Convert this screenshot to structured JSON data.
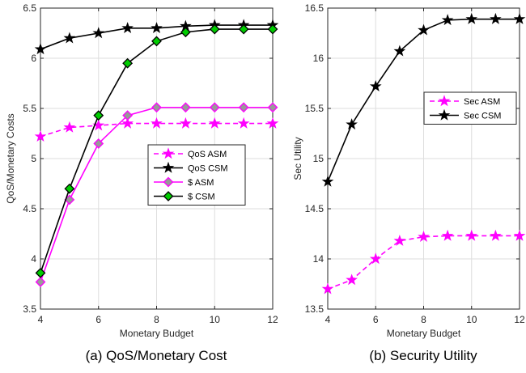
{
  "chart_data": [
    {
      "type": "line",
      "caption": "(a) QoS/Monetary Cost",
      "xlabel": "Monetary Budget",
      "ylabel": "QoS/Monetary Costs",
      "xlim": [
        4,
        12
      ],
      "ylim": [
        3.5,
        6.5
      ],
      "xticks": [
        4,
        6,
        8,
        10,
        12
      ],
      "xtick_labels": [
        "4",
        "6",
        "8",
        "10",
        "12"
      ],
      "yticks": [
        3.5,
        4,
        4.5,
        5,
        5.5,
        6,
        6.5
      ],
      "ytick_labels": [
        "3.5",
        "4",
        "4.5",
        "5",
        "5.5",
        "6",
        "6.5"
      ],
      "grid": true,
      "legend_position": "middle-right",
      "x": [
        4,
        5,
        6,
        7,
        8,
        9,
        10,
        11,
        12
      ],
      "series": [
        {
          "name": "QoS ASM",
          "values": [
            5.22,
            5.31,
            5.33,
            5.35,
            5.35,
            5.35,
            5.35,
            5.35,
            5.35
          ],
          "color": "#ff00ff",
          "line": "dashed",
          "marker": "star",
          "marker_face": "#ff00ff"
        },
        {
          "name": "QoS CSM",
          "values": [
            6.09,
            6.2,
            6.25,
            6.3,
            6.3,
            6.32,
            6.33,
            6.33,
            6.33
          ],
          "color": "#000000",
          "line": "solid",
          "marker": "star",
          "marker_face": "#000000"
        },
        {
          "name": "$ ASM",
          "values": [
            3.77,
            4.59,
            5.15,
            5.43,
            5.51,
            5.51,
            5.51,
            5.51,
            5.51
          ],
          "color": "#ff00ff",
          "line": "solid",
          "marker": "diamond",
          "marker_face": "#999999"
        },
        {
          "name": "$ CSM",
          "values": [
            3.86,
            4.7,
            5.43,
            5.95,
            6.17,
            6.26,
            6.29,
            6.29,
            6.29
          ],
          "color": "#000000",
          "line": "solid",
          "marker": "diamond",
          "marker_face": "#00cc00"
        }
      ]
    },
    {
      "type": "line",
      "caption": "(b) Security Utility",
      "xlabel": "Monetary Budget",
      "ylabel": "Sec Utility",
      "xlim": [
        4,
        12
      ],
      "ylim": [
        13.5,
        16.5
      ],
      "xticks": [
        4,
        6,
        8,
        10,
        12
      ],
      "xtick_labels": [
        "4",
        "6",
        "8",
        "10",
        "12"
      ],
      "yticks": [
        13.5,
        14,
        14.5,
        15,
        15.5,
        16,
        16.5
      ],
      "ytick_labels": [
        "13.5",
        "14",
        "14.5",
        "15",
        "15.5",
        "16",
        "16.5"
      ],
      "grid": true,
      "legend_position": "upper-right",
      "x": [
        4,
        5,
        6,
        7,
        8,
        9,
        10,
        11,
        12
      ],
      "series": [
        {
          "name": "Sec ASM",
          "values": [
            13.7,
            13.79,
            14.0,
            14.18,
            14.22,
            14.23,
            14.23,
            14.23,
            14.23
          ],
          "color": "#ff00ff",
          "line": "dashed",
          "marker": "star",
          "marker_face": "#ff00ff"
        },
        {
          "name": "Sec CSM",
          "values": [
            14.77,
            15.34,
            15.72,
            16.07,
            16.28,
            16.38,
            16.39,
            16.39,
            16.39
          ],
          "color": "#000000",
          "line": "solid",
          "marker": "star",
          "marker_face": "#000000"
        }
      ]
    }
  ]
}
